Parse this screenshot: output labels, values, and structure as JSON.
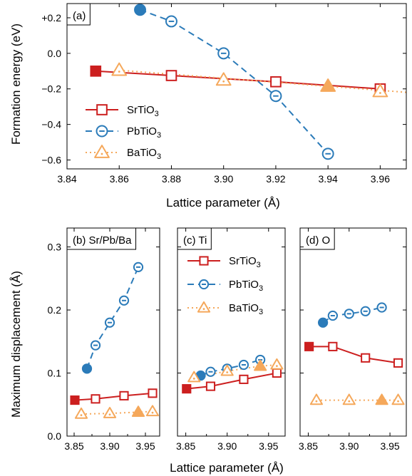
{
  "colors": {
    "SrTiO3": "#cc1f1f",
    "PbTiO3": "#2b7bb9",
    "BaTiO3": "#f5a85b"
  },
  "legend": [
    {
      "key": "SrTiO3",
      "base": "SrTiO",
      "sub": "3",
      "marker": "square",
      "line": "solid"
    },
    {
      "key": "PbTiO3",
      "base": "PbTiO",
      "sub": "3",
      "marker": "circle-dash",
      "line": "dashed"
    },
    {
      "key": "BaTiO3",
      "base": "BaTiO",
      "sub": "3",
      "marker": "triangle-dot",
      "line": "dotted"
    }
  ],
  "chart_data": [
    {
      "type": "line",
      "panel_label": "(a)",
      "xlabel": "Lattice parameter (Å)",
      "ylabel": "Formation energy (eV)",
      "xlim": [
        3.84,
        3.97
      ],
      "ylim": [
        -0.65,
        0.28
      ],
      "xticks": [
        3.84,
        3.86,
        3.88,
        3.9,
        3.92,
        3.94,
        3.96
      ],
      "xtick_labels": [
        "3.84",
        "3.86",
        "3.88",
        "3.90",
        "3.92",
        "3.94",
        "3.96"
      ],
      "yticks": [
        -0.6,
        -0.4,
        -0.2,
        0.0,
        0.2
      ],
      "ytick_labels": [
        "−0.6",
        "−0.4",
        "−0.2",
        "0.0",
        "+0.2"
      ],
      "legend_position": "bottom-left",
      "series": [
        {
          "key": "SrTiO3",
          "x": [
            3.851,
            3.88,
            3.92,
            3.96
          ],
          "y": [
            -0.1,
            -0.125,
            -0.16,
            -0.2
          ],
          "filled": [
            true,
            false,
            false,
            false
          ]
        },
        {
          "key": "PbTiO3",
          "x": [
            3.868,
            3.88,
            3.9,
            3.92,
            3.94
          ],
          "y": [
            0.245,
            0.18,
            0.0,
            -0.24,
            -0.565
          ],
          "filled": [
            true,
            false,
            false,
            false,
            false
          ]
        },
        {
          "key": "BaTiO3",
          "x": [
            3.86,
            3.9,
            3.94,
            3.96
          ],
          "y": [
            -0.095,
            -0.15,
            -0.185,
            -0.215
          ],
          "filled": [
            false,
            false,
            true,
            false
          ],
          "line_x": [
            3.86,
            3.975
          ],
          "line_y": [
            -0.095,
            -0.225
          ]
        }
      ]
    },
    {
      "type": "line",
      "panel_label": "(b) Sr/Pb/Ba",
      "ylabel": "Maximum displacement (Å)",
      "xlim": [
        3.84,
        3.97
      ],
      "ylim": [
        0.0,
        0.33
      ],
      "xticks": [
        3.85,
        3.9,
        3.95
      ],
      "xtick_labels": [
        "3.85",
        "3.90",
        "3.95"
      ],
      "yticks": [
        0.0,
        0.1,
        0.2,
        0.3
      ],
      "ytick_labels": [
        "0.0",
        "0.1",
        "0.2",
        "0.3"
      ],
      "series": [
        {
          "key": "SrTiO3",
          "x": [
            3.851,
            3.88,
            3.92,
            3.96
          ],
          "y": [
            0.057,
            0.059,
            0.064,
            0.068
          ],
          "filled": [
            true,
            false,
            false,
            false
          ]
        },
        {
          "key": "PbTiO3",
          "x": [
            3.868,
            3.88,
            3.9,
            3.92,
            3.94
          ],
          "y": [
            0.107,
            0.144,
            0.18,
            0.215,
            0.268
          ],
          "filled": [
            true,
            false,
            false,
            false,
            false
          ]
        },
        {
          "key": "BaTiO3",
          "x": [
            3.86,
            3.9,
            3.94,
            3.96
          ],
          "y": [
            0.035,
            0.036,
            0.038,
            0.039
          ],
          "filled": [
            false,
            false,
            true,
            false
          ]
        }
      ]
    },
    {
      "type": "line",
      "panel_label": "(c) Ti",
      "xlim": [
        3.84,
        3.97
      ],
      "ylim": [
        0.0,
        0.33
      ],
      "xticks": [
        3.85,
        3.9,
        3.95
      ],
      "xtick_labels": [
        "3.85",
        "3.90",
        "3.95"
      ],
      "legend_position": "top-right",
      "series": [
        {
          "key": "SrTiO3",
          "x": [
            3.851,
            3.88,
            3.92,
            3.96
          ],
          "y": [
            0.075,
            0.079,
            0.09,
            0.1
          ],
          "filled": [
            true,
            false,
            false,
            false
          ]
        },
        {
          "key": "PbTiO3",
          "x": [
            3.868,
            3.88,
            3.9,
            3.92,
            3.94
          ],
          "y": [
            0.096,
            0.102,
            0.107,
            0.113,
            0.121
          ],
          "filled": [
            true,
            false,
            false,
            false,
            false
          ]
        },
        {
          "key": "BaTiO3",
          "x": [
            3.86,
            3.9,
            3.94,
            3.96
          ],
          "y": [
            0.093,
            0.103,
            0.111,
            0.113
          ],
          "filled": [
            false,
            false,
            true,
            false
          ]
        }
      ]
    },
    {
      "type": "line",
      "panel_label": "(d) O",
      "xlim": [
        3.84,
        3.97
      ],
      "ylim": [
        0.0,
        0.33
      ],
      "xticks": [
        3.85,
        3.9,
        3.95
      ],
      "xtick_labels": [
        "3.85",
        "3.90",
        "3.95"
      ],
      "series": [
        {
          "key": "SrTiO3",
          "x": [
            3.851,
            3.88,
            3.92,
            3.96
          ],
          "y": [
            0.142,
            0.142,
            0.124,
            0.116
          ],
          "filled": [
            true,
            false,
            false,
            false
          ]
        },
        {
          "key": "PbTiO3",
          "x": [
            3.868,
            3.88,
            3.9,
            3.92,
            3.94
          ],
          "y": [
            0.18,
            0.191,
            0.194,
            0.198,
            0.204
          ],
          "filled": [
            true,
            false,
            false,
            false,
            false
          ]
        },
        {
          "key": "BaTiO3",
          "x": [
            3.86,
            3.9,
            3.94,
            3.96
          ],
          "y": [
            0.057,
            0.057,
            0.057,
            0.057
          ],
          "filled": [
            false,
            false,
            true,
            false
          ]
        }
      ]
    }
  ],
  "bottom_xlabel": "Lattice parameter (Å)"
}
